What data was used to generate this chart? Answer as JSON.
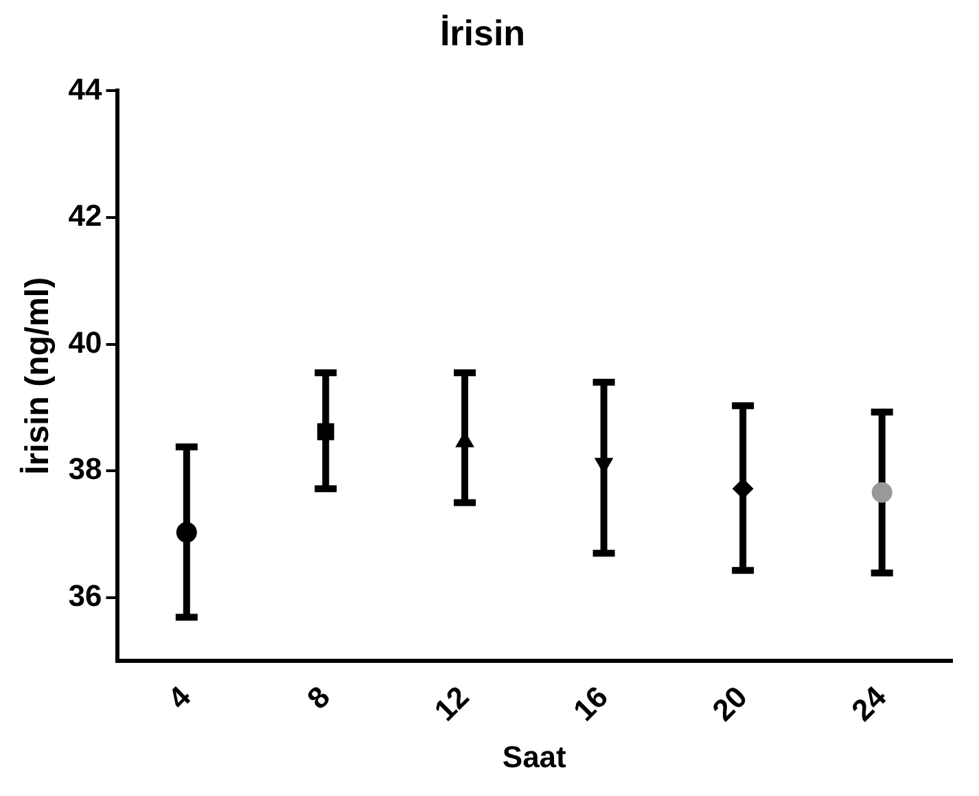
{
  "chart_data": {
    "type": "scatter",
    "title": "İrisin",
    "xlabel": "Saat",
    "ylabel": "İrisin (ng/ml)",
    "categories": [
      "4",
      "8",
      "12",
      "16",
      "20",
      "24"
    ],
    "series": [
      {
        "x": [
          "4"
        ],
        "values": [
          37.03
        ],
        "errors": [
          [
            35.69,
            38.38
          ]
        ],
        "marker": "circle",
        "color": "#000000"
      },
      {
        "x": [
          "8"
        ],
        "values": [
          38.62
        ],
        "errors": [
          [
            37.72,
            39.55
          ]
        ],
        "marker": "square",
        "color": "#000000"
      },
      {
        "x": [
          "12"
        ],
        "values": [
          38.46
        ],
        "errors": [
          [
            37.5,
            39.55
          ]
        ],
        "marker": "triangle",
        "color": "#000000"
      },
      {
        "x": [
          "16"
        ],
        "values": [
          38.12
        ],
        "errors": [
          [
            36.7,
            39.4
          ]
        ],
        "marker": "triangle-down",
        "color": "#000000"
      },
      {
        "x": [
          "20"
        ],
        "values": [
          37.72
        ],
        "errors": [
          [
            36.43,
            39.03
          ]
        ],
        "marker": "diamond",
        "color": "#000000"
      },
      {
        "x": [
          "24"
        ],
        "values": [
          37.66
        ],
        "errors": [
          [
            36.39,
            38.93
          ]
        ],
        "marker": "circle",
        "color": "#999999"
      }
    ],
    "ylim": [
      35,
      44
    ],
    "yticks": [
      36,
      38,
      40,
      42,
      44
    ],
    "grid": false,
    "legend": false
  }
}
